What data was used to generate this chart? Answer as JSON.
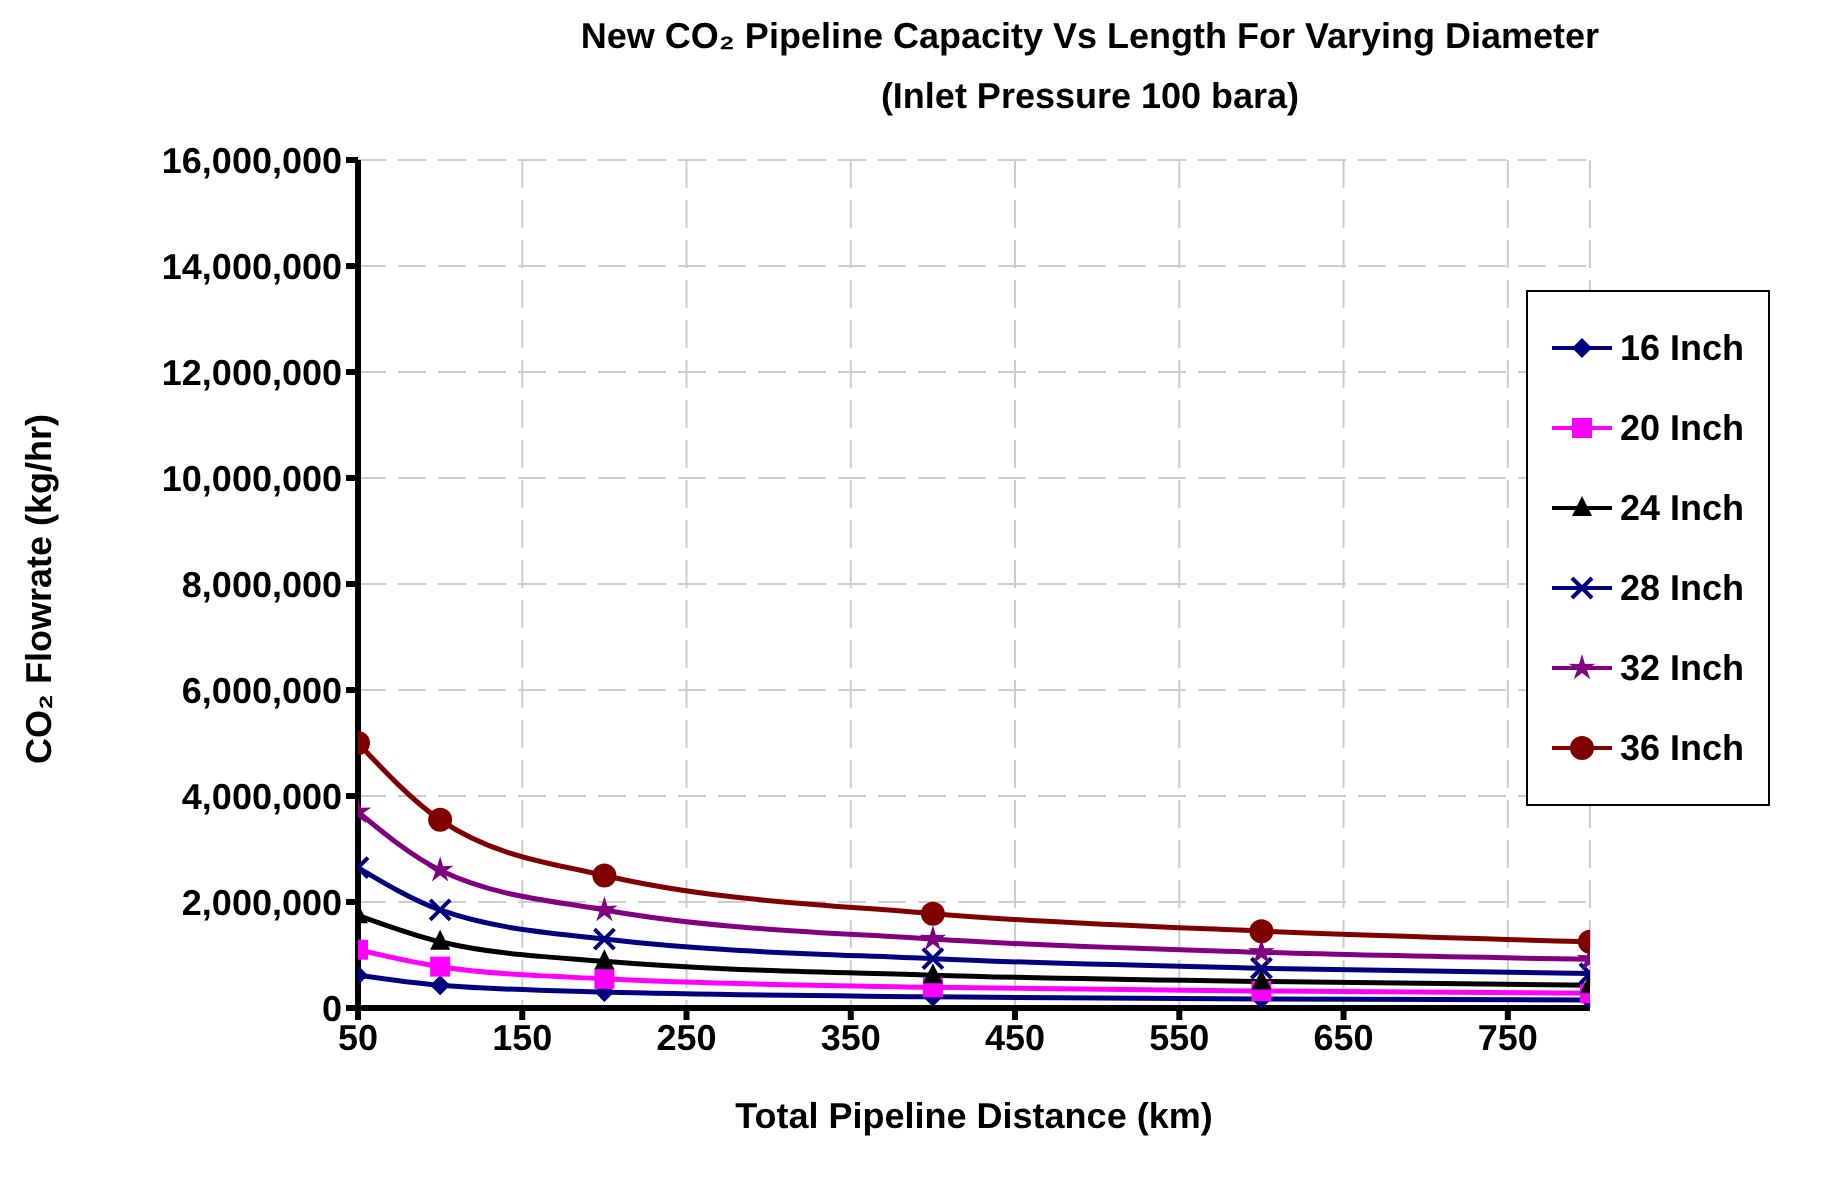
{
  "chart_data": {
    "type": "line",
    "title": "New CO₂ Pipeline Capacity Vs Length For Varying Diameter",
    "subtitle": "(Inlet Pressure 100 bara)",
    "xlabel": "Total Pipeline Distance (km)",
    "ylabel": "CO₂ Flowrate (kg/hr)",
    "x": [
      50,
      100,
      200,
      400,
      600,
      800
    ],
    "xlim": [
      50,
      800
    ],
    "xticks": [
      50,
      150,
      250,
      350,
      450,
      550,
      650,
      750
    ],
    "ylim": [
      0,
      16000000
    ],
    "yticks": [
      0,
      {
        "value": 2000000,
        "label": "2,000,000"
      },
      {
        "value": 4000000,
        "label": "4,000,000"
      },
      {
        "value": 6000000,
        "label": "6,000,000"
      },
      {
        "value": 8000000,
        "label": "8,000,000"
      },
      {
        "value": 10000000,
        "label": "10,000,000"
      },
      {
        "value": 12000000,
        "label": "12,000,000"
      },
      {
        "value": 14000000,
        "label": "14,000,000"
      },
      {
        "value": 16000000,
        "label": "16,000,000"
      }
    ],
    "grid": true,
    "legend": "top right",
    "series": [
      {
        "name": "16 Inch",
        "color": "#000080",
        "marker": "diamond",
        "values": [
          620000,
          430000,
          300000,
          210000,
          170000,
          150000
        ]
      },
      {
        "name": "20 Inch",
        "color": "#ff00ff",
        "marker": "square",
        "values": [
          1100000,
          780000,
          550000,
          390000,
          320000,
          280000
        ]
      },
      {
        "name": "24 Inch",
        "color": "#000000",
        "marker": "triangle",
        "values": [
          1750000,
          1250000,
          880000,
          620000,
          500000,
          430000
        ]
      },
      {
        "name": "28 Inch",
        "color": "#000080",
        "marker": "cross",
        "values": [
          2650000,
          1850000,
          1300000,
          930000,
          750000,
          650000
        ]
      },
      {
        "name": "32 Inch",
        "color": "#800080",
        "marker": "star",
        "values": [
          3700000,
          2600000,
          1850000,
          1300000,
          1050000,
          920000
        ]
      },
      {
        "name": "36 Inch",
        "color": "#800000",
        "marker": "circle",
        "values": [
          5000000,
          3550000,
          2500000,
          1780000,
          1450000,
          1250000
        ]
      }
    ]
  }
}
